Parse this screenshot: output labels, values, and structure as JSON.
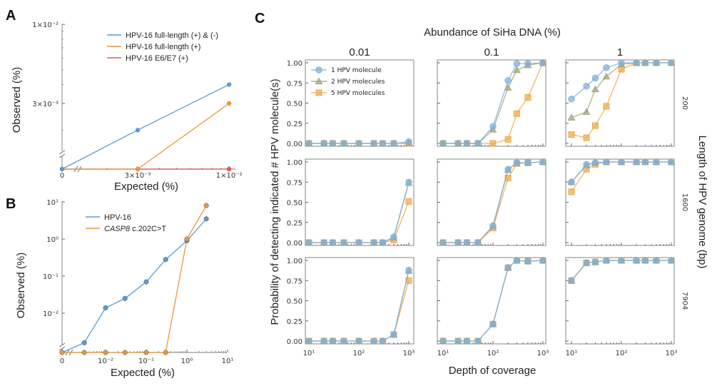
{
  "figure": {
    "colors": {
      "blue": "#5b9bd5",
      "orange": "#e8973f",
      "red": "#e8554a",
      "olive": "#a3a37a",
      "c_orange": "#f0a848",
      "c_blue": "#7fb0dc"
    }
  },
  "chart_data": [
    {
      "panel": "A",
      "type": "line",
      "xlabel": "Expected (%)",
      "ylabel": "Observed (%)",
      "x_scale": "broken-log",
      "y_scale": "broken-log",
      "xtick_labels": [
        "0",
        "3×10⁻³",
        "1×10⁻²"
      ],
      "ytick_labels": [
        "1×10⁻²",
        "3×10⁻³"
      ],
      "x": [
        0,
        0.003,
        0.01
      ],
      "series": [
        {
          "name": "HPV-16 full-length (+) & (-)",
          "color": "#5b9bd5",
          "values": [
            0,
            0.002,
            0.004
          ]
        },
        {
          "name": "HPV-16 full-length (+)",
          "color": "#e8973f",
          "values": [
            0,
            0,
            0.003
          ]
        },
        {
          "name": "HPV-16 E6/E7 (+)",
          "color": "#e8554a",
          "values": [
            0,
            0,
            0
          ]
        }
      ],
      "legend": "top-right"
    },
    {
      "panel": "B",
      "type": "line",
      "xlabel": "Expected (%)",
      "ylabel": "Observed (%)",
      "x_scale": "broken-log",
      "y_scale": "broken-log",
      "xtick_labels": [
        "0",
        "10⁻²",
        "10⁻¹",
        "10⁰",
        "10¹"
      ],
      "ytick_labels": [
        "10¹",
        "10⁰",
        "10⁻¹",
        "10⁻²"
      ],
      "x": [
        0,
        0.003,
        0.01,
        0.03,
        0.1,
        0.3,
        1,
        3
      ],
      "series": [
        {
          "name": "HPV-16",
          "color": "#5b9bd5",
          "values": [
            0,
            0.0016,
            0.014,
            0.025,
            0.07,
            0.28,
            0.9,
            3.5
          ]
        },
        {
          "name": "CASP8 c.202C>T",
          "name_italic": "CASP8",
          "name_rest": " c.202C>T",
          "color": "#e8973f",
          "values": [
            0,
            0,
            0,
            0,
            0,
            0,
            1.0,
            8.0
          ]
        }
      ],
      "legend": "top-left"
    },
    {
      "panel": "C",
      "type": "line-grid",
      "title": "Abundance of SiHa DNA (%)",
      "xlabel": "Depth of coverage",
      "ylabel": "Probability of detecting indicated # HPV molecule(s)",
      "right_label": "Length of HPV genome (bp)",
      "x_scale": "log",
      "xlim": [
        10,
        1000
      ],
      "ylim": [
        0,
        1
      ],
      "xtick_labels": [
        "10¹",
        "10²",
        "10³"
      ],
      "ytick_labels": [
        "0.00",
        "0.25",
        "0.50",
        "0.75",
        "1.00"
      ],
      "columns": [
        "0.01",
        "0.1",
        "1"
      ],
      "rows": [
        "200",
        "1600",
        "7904"
      ],
      "x": [
        10,
        20,
        30,
        50,
        100,
        200,
        300,
        500,
        1000
      ],
      "series_names": [
        "1 HPV molecule",
        "2 HPV molecules",
        "5 HPV molecules"
      ],
      "series_colors": [
        "#7fb0dc",
        "#a3a37a",
        "#f0a848"
      ],
      "series_markers": [
        "circle",
        "triangle",
        "square"
      ],
      "legend": "top-left of first subplot",
      "panels": [
        [
          [
            [
              0,
              0,
              0,
              0,
              0,
              0,
              0,
              0,
              0.02
            ],
            [
              0,
              0,
              0,
              0,
              0,
              0,
              0,
              0,
              0.01
            ],
            [
              0,
              0,
              0,
              0,
              0,
              0,
              0,
              0,
              0
            ]
          ],
          [
            [
              0,
              0,
              0,
              0,
              0.21,
              0.78,
              0.99,
              0.99,
              1
            ],
            [
              0,
              0,
              0,
              0,
              0.17,
              0.69,
              0.91,
              0.97,
              1
            ],
            [
              0,
              0,
              0,
              0,
              0,
              0.05,
              0.37,
              0.57,
              1
            ]
          ],
          [
            [
              0.55,
              0.71,
              0.81,
              0.94,
              1,
              1,
              1,
              1,
              1
            ],
            [
              0.32,
              0.39,
              0.67,
              0.83,
              0.98,
              1,
              1,
              1,
              1
            ],
            [
              0.11,
              0.07,
              0.22,
              0.46,
              0.92,
              1,
              1,
              1,
              1
            ]
          ]
        ],
        [
          [
            [
              0,
              0,
              0,
              0,
              0,
              0,
              0,
              0.07,
              0.75
            ],
            [
              0,
              0,
              0,
              0,
              0,
              0,
              0,
              0.06,
              0.74
            ],
            [
              0,
              0,
              0,
              0,
              0,
              0,
              0,
              0.03,
              0.51
            ]
          ],
          [
            [
              0,
              0,
              0,
              0,
              0.21,
              0.91,
              0.99,
              0.99,
              1
            ],
            [
              0,
              0,
              0,
              0,
              0.2,
              0.9,
              0.99,
              0.99,
              1
            ],
            [
              0,
              0,
              0,
              0,
              0.18,
              0.8,
              0.98,
              0.99,
              1
            ]
          ],
          [
            [
              0.75,
              0.97,
              0.99,
              1,
              1,
              1,
              1,
              1,
              1
            ],
            [
              0.75,
              0.96,
              0.99,
              1,
              1,
              1,
              1,
              1,
              1
            ],
            [
              0.63,
              0.91,
              0.97,
              1,
              1,
              1,
              1,
              1,
              1
            ]
          ]
        ],
        [
          [
            [
              0,
              0,
              0,
              0,
              0,
              0,
              0,
              0.08,
              0.88
            ],
            [
              0,
              0,
              0,
              0,
              0,
              0,
              0,
              0.08,
              0.87
            ],
            [
              0,
              0,
              0,
              0,
              0,
              0,
              0,
              0.08,
              0.75
            ]
          ],
          [
            [
              0,
              0,
              0,
              0,
              0.21,
              0.91,
              1,
              0.99,
              1
            ],
            [
              0,
              0,
              0,
              0,
              0.21,
              0.91,
              1,
              0.99,
              1
            ],
            [
              0,
              0,
              0,
              0,
              0.21,
              0.91,
              1,
              0.99,
              1
            ]
          ],
          [
            [
              0.75,
              0.97,
              0.98,
              1,
              1,
              1,
              1,
              1,
              1
            ],
            [
              0.75,
              0.97,
              0.98,
              1,
              1,
              1,
              1,
              1,
              1
            ],
            [
              0.75,
              0.97,
              0.98,
              1,
              1,
              1,
              1,
              1,
              1
            ]
          ]
        ]
      ]
    }
  ],
  "labels": {
    "a": "A",
    "b": "B",
    "c": "C"
  }
}
